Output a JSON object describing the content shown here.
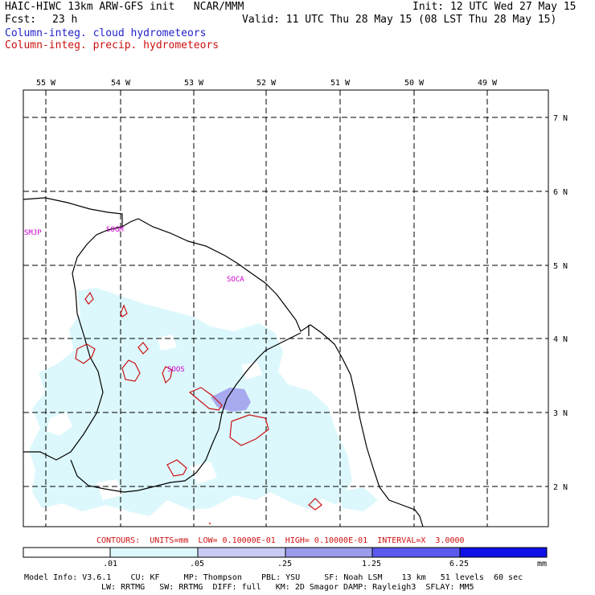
{
  "header": {
    "title_left": "HAIC-HIWC 13km ARW-GFS init   NCAR/MMM",
    "init": "Init: 12 UTC Wed 27 May 15",
    "fcst_label": "Fcst:",
    "fcst_value": "23 h",
    "valid": "Valid: 11 UTC Thu 28 May 15 (08 LST Thu 28 May 15)",
    "cloud_field": "Column-integ. cloud hydrometeors",
    "precip_field": "Column-integ. precip. hydrometeors"
  },
  "colors": {
    "cloud_text": "#2222cc",
    "precip_text": "#cc1111",
    "station_text": "#cc00cc",
    "coast": "#000000",
    "grid": "#000000",
    "fill_light": "#dcf8fc",
    "fill_medium": "#a8aaf0",
    "contour": "#cc1111"
  },
  "map": {
    "lon_labels": [
      "55 W",
      "54 W",
      "53 W",
      "52 W",
      "51 W",
      "50 W",
      "49 W"
    ],
    "lat_labels": [
      "7 N",
      "6 N",
      "5 N",
      "4 N",
      "3 N",
      "2 N"
    ],
    "stations": [
      "SMJP",
      "SOGM",
      "SOCA",
      "SOOS"
    ]
  },
  "contours_line": "CONTOURS:  UNITS=mm  LOW= 0.10000E-01  HIGH= 0.10000E-01  INTERVAL=X  3.0000",
  "colorbar": {
    "ticks": [
      ".01",
      ".05",
      ".25",
      "1.25",
      "6.25"
    ],
    "unit": "mm",
    "colors": [
      "#ffffff",
      "#dcf8fc",
      "#c8ccf4",
      "#9a9cec",
      "#5a5aee",
      "#1010e8"
    ]
  },
  "footer": {
    "line1": "Model Info: V3.6.1    CU: KF     MP: Thompson    PBL: YSU     SF: Noah LSM    13 km   51 levels  60 sec",
    "line2": "LW: RRTMG   SW: RRTMG  DIFF: full   KM: 2D Smagor DAMP: Rayleigh3  SFLAY: MM5"
  }
}
